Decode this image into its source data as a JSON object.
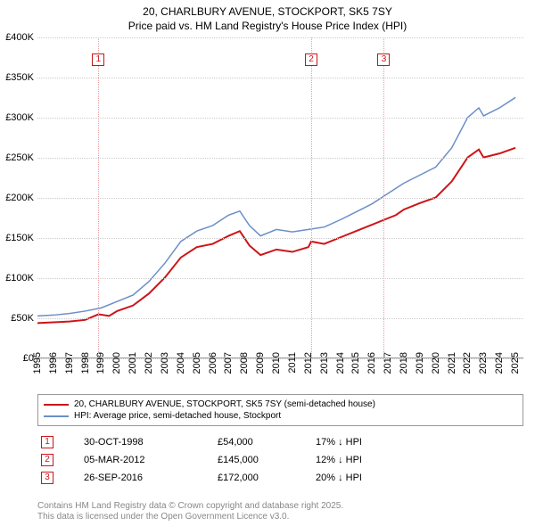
{
  "title_line1": "20, CHARLBURY AVENUE, STOCKPORT, SK5 7SY",
  "title_line2": "Price paid vs. HM Land Registry's House Price Index (HPI)",
  "chart": {
    "type": "line",
    "x_start": 1995,
    "x_end": 2025.5,
    "ylim": [
      0,
      400000
    ],
    "ytick_step": 50000,
    "yticks": [
      "£0",
      "£50K",
      "£100K",
      "£150K",
      "£200K",
      "£250K",
      "£300K",
      "£350K",
      "£400K"
    ],
    "xticks": [
      1995,
      1996,
      1997,
      1998,
      1999,
      2000,
      2001,
      2002,
      2003,
      2004,
      2005,
      2006,
      2007,
      2008,
      2009,
      2010,
      2011,
      2012,
      2013,
      2014,
      2015,
      2016,
      2017,
      2018,
      2019,
      2020,
      2021,
      2022,
      2023,
      2024,
      2025
    ],
    "grid_color": "#cccccc",
    "background_color": "#ffffff",
    "series": [
      {
        "name": "20, CHARLBURY AVENUE, STOCKPORT, SK5 7SY (semi-detached house)",
        "color": "#cd1418",
        "width": 2,
        "data": [
          [
            1995,
            43000
          ],
          [
            1996,
            44000
          ],
          [
            1997,
            45000
          ],
          [
            1998,
            47000
          ],
          [
            1998.83,
            54000
          ],
          [
            1999.5,
            52000
          ],
          [
            2000,
            58000
          ],
          [
            2001,
            65000
          ],
          [
            2002,
            80000
          ],
          [
            2003,
            100000
          ],
          [
            2004,
            125000
          ],
          [
            2005,
            138000
          ],
          [
            2006,
            142000
          ],
          [
            2007,
            152000
          ],
          [
            2007.7,
            158000
          ],
          [
            2008.3,
            140000
          ],
          [
            2009,
            128000
          ],
          [
            2010,
            135000
          ],
          [
            2011,
            132000
          ],
          [
            2012,
            138000
          ],
          [
            2012.18,
            145000
          ],
          [
            2013,
            142000
          ],
          [
            2014,
            150000
          ],
          [
            2015,
            158000
          ],
          [
            2016,
            166000
          ],
          [
            2016.74,
            172000
          ],
          [
            2017.5,
            178000
          ],
          [
            2018,
            185000
          ],
          [
            2019,
            193000
          ],
          [
            2020,
            200000
          ],
          [
            2021,
            220000
          ],
          [
            2022,
            250000
          ],
          [
            2022.7,
            260000
          ],
          [
            2023,
            250000
          ],
          [
            2024,
            255000
          ],
          [
            2025,
            262000
          ]
        ]
      },
      {
        "name": "HPI: Average price, semi-detached house, Stockport",
        "color": "#6b8fc9",
        "width": 1.5,
        "data": [
          [
            1995,
            52000
          ],
          [
            1996,
            53000
          ],
          [
            1997,
            55000
          ],
          [
            1998,
            58000
          ],
          [
            1999,
            62000
          ],
          [
            2000,
            70000
          ],
          [
            2001,
            78000
          ],
          [
            2002,
            95000
          ],
          [
            2003,
            118000
          ],
          [
            2004,
            145000
          ],
          [
            2005,
            158000
          ],
          [
            2006,
            165000
          ],
          [
            2007,
            178000
          ],
          [
            2007.7,
            183000
          ],
          [
            2008.3,
            165000
          ],
          [
            2009,
            152000
          ],
          [
            2010,
            160000
          ],
          [
            2011,
            157000
          ],
          [
            2012,
            160000
          ],
          [
            2013,
            163000
          ],
          [
            2014,
            172000
          ],
          [
            2015,
            182000
          ],
          [
            2016,
            192000
          ],
          [
            2017,
            205000
          ],
          [
            2018,
            218000
          ],
          [
            2019,
            228000
          ],
          [
            2020,
            238000
          ],
          [
            2021,
            262000
          ],
          [
            2022,
            300000
          ],
          [
            2022.7,
            312000
          ],
          [
            2023,
            302000
          ],
          [
            2024,
            312000
          ],
          [
            2025,
            325000
          ]
        ]
      }
    ],
    "sale_markers": [
      {
        "n": "1",
        "x": 1998.83,
        "marker_color": "#cd1418",
        "vline_color": "#e8a0a0"
      },
      {
        "n": "2",
        "x": 2012.18,
        "marker_color": "#cd1418",
        "vline_color": "#e8a0a0"
      },
      {
        "n": "3",
        "x": 2016.74,
        "marker_color": "#cd1418",
        "vline_color": "#e8a0a0"
      }
    ]
  },
  "legend": [
    {
      "color": "#cd1418",
      "label": "20, CHARLBURY AVENUE, STOCKPORT, SK5 7SY (semi-detached house)"
    },
    {
      "color": "#6b8fc9",
      "label": "HPI: Average price, semi-detached house, Stockport"
    }
  ],
  "sales": [
    {
      "n": "1",
      "date": "30-OCT-1998",
      "price": "£54,000",
      "diff": "17% ↓ HPI"
    },
    {
      "n": "2",
      "date": "05-MAR-2012",
      "price": "£145,000",
      "diff": "12% ↓ HPI"
    },
    {
      "n": "3",
      "date": "26-SEP-2016",
      "price": "£172,000",
      "diff": "20% ↓ HPI"
    }
  ],
  "footer_line1": "Contains HM Land Registry data © Crown copyright and database right 2025.",
  "footer_line2": "This data is licensed under the Open Government Licence v3.0."
}
